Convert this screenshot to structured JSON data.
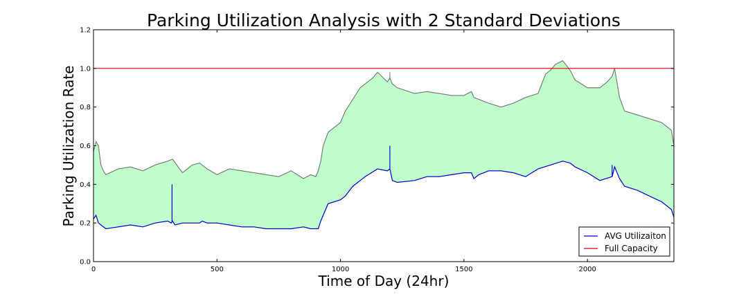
{
  "chart_data": {
    "type": "line",
    "title": "Parking Utilization Analysis with 2 Standard Deviations",
    "xlabel": "Time of Day (24hr)",
    "ylabel": "Parking Utilization Rate",
    "xlim": [
      0,
      2350
    ],
    "ylim": [
      0.0,
      1.2
    ],
    "xticks": [
      0,
      500,
      1000,
      1500,
      2000
    ],
    "yticks": [
      0.0,
      0.2,
      0.4,
      0.6,
      0.8,
      1.0,
      1.2
    ],
    "xtick_labels": [
      "0",
      "500",
      "1000",
      "1500",
      "2000"
    ],
    "ytick_labels": [
      "0.0",
      "0.2",
      "0.4",
      "0.6",
      "0.8",
      "1.0",
      "1.2"
    ],
    "grid": false,
    "legend_position": "bottom-right",
    "series": [
      {
        "name": "AVG Utilizaiton",
        "color": "#0000cc",
        "x": [
          0,
          10,
          20,
          30,
          50,
          100,
          150,
          200,
          250,
          300,
          315,
          320,
          330,
          360,
          400,
          430,
          440,
          460,
          500,
          550,
          600,
          650,
          700,
          750,
          800,
          850,
          880,
          900,
          910,
          920,
          930,
          950,
          1000,
          1020,
          1050,
          1080,
          1100,
          1150,
          1190,
          1200,
          1210,
          1230,
          1300,
          1350,
          1400,
          1450,
          1500,
          1530,
          1540,
          1560,
          1600,
          1650,
          1700,
          1750,
          1800,
          1850,
          1900,
          1930,
          1950,
          2000,
          2050,
          2100,
          2110,
          2130,
          2150,
          2200,
          2250,
          2300,
          2340,
          2350
        ],
        "y": [
          0.22,
          0.24,
          0.2,
          0.19,
          0.17,
          0.18,
          0.19,
          0.18,
          0.2,
          0.21,
          0.2,
          0.21,
          0.19,
          0.2,
          0.2,
          0.2,
          0.21,
          0.2,
          0.2,
          0.19,
          0.18,
          0.18,
          0.17,
          0.17,
          0.17,
          0.18,
          0.17,
          0.17,
          0.17,
          0.21,
          0.24,
          0.3,
          0.32,
          0.34,
          0.39,
          0.42,
          0.44,
          0.48,
          0.47,
          0.48,
          0.42,
          0.41,
          0.42,
          0.44,
          0.44,
          0.45,
          0.46,
          0.46,
          0.43,
          0.45,
          0.47,
          0.47,
          0.46,
          0.44,
          0.48,
          0.5,
          0.52,
          0.51,
          0.49,
          0.46,
          0.42,
          0.44,
          0.49,
          0.43,
          0.39,
          0.37,
          0.34,
          0.31,
          0.27,
          0.23
        ],
        "spikes": [
          {
            "x": 318,
            "y": 0.4
          },
          {
            "x": 1200,
            "y": 0.6
          },
          {
            "x": 2100,
            "y": 0.5
          }
        ]
      },
      {
        "name": "Full Capacity",
        "color": "#e00000",
        "x": [
          0,
          2350
        ],
        "y": [
          1.0,
          1.0
        ]
      }
    ],
    "band": {
      "fill": "#c0ffcc",
      "edge_color": "#3a7a3a",
      "upper_line_color": "#777777",
      "lower_from_series": "AVG Utilizaiton",
      "upper_x": [
        0,
        10,
        20,
        30,
        40,
        50,
        100,
        150,
        200,
        250,
        300,
        320,
        360,
        400,
        430,
        440,
        460,
        500,
        550,
        600,
        650,
        700,
        750,
        800,
        850,
        880,
        900,
        910,
        920,
        930,
        950,
        1000,
        1020,
        1050,
        1080,
        1100,
        1130,
        1150,
        1190,
        1200,
        1210,
        1230,
        1300,
        1350,
        1400,
        1450,
        1500,
        1530,
        1540,
        1560,
        1600,
        1650,
        1700,
        1750,
        1800,
        1830,
        1850,
        1870,
        1900,
        1930,
        1950,
        2000,
        2050,
        2080,
        2100,
        2110,
        2130,
        2150,
        2200,
        2250,
        2300,
        2340,
        2350
      ],
      "upper_y": [
        0.57,
        0.62,
        0.6,
        0.5,
        0.47,
        0.45,
        0.48,
        0.49,
        0.47,
        0.5,
        0.52,
        0.53,
        0.46,
        0.5,
        0.51,
        0.5,
        0.48,
        0.45,
        0.48,
        0.47,
        0.46,
        0.45,
        0.44,
        0.47,
        0.43,
        0.45,
        0.44,
        0.47,
        0.52,
        0.6,
        0.67,
        0.72,
        0.78,
        0.84,
        0.9,
        0.92,
        0.95,
        0.98,
        0.93,
        0.95,
        0.92,
        0.9,
        0.87,
        0.88,
        0.87,
        0.86,
        0.86,
        0.88,
        0.85,
        0.84,
        0.82,
        0.8,
        0.82,
        0.85,
        0.87,
        0.97,
        0.99,
        1.02,
        1.04,
        0.99,
        0.94,
        0.9,
        0.9,
        0.93,
        0.96,
        1.0,
        0.85,
        0.78,
        0.76,
        0.74,
        0.72,
        0.68,
        0.6
      ],
      "upper_spikes": [
        {
          "x": 1200,
          "y": 0.98
        },
        {
          "x": 1540,
          "y": 0.85
        }
      ]
    }
  }
}
